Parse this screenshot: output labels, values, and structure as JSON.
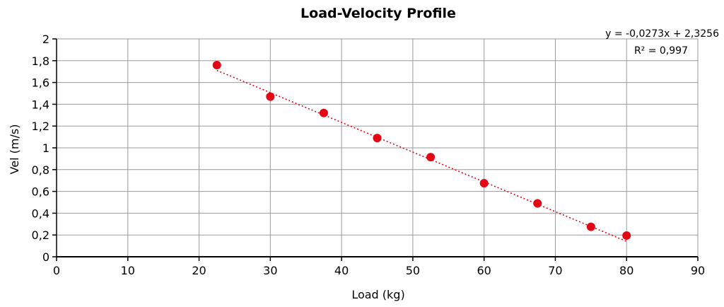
{
  "chart_data": {
    "type": "scatter",
    "title": "Load-Velocity Profile",
    "xlabel": "Load (kg)",
    "ylabel": "Vel (m/s)",
    "xlim": [
      0,
      90
    ],
    "ylim": [
      0,
      2
    ],
    "xticks": [
      0,
      10,
      20,
      30,
      40,
      50,
      60,
      70,
      80,
      90
    ],
    "xtick_labels": [
      "0",
      "10",
      "20",
      "30",
      "40",
      "50",
      "60",
      "70",
      "80",
      "90"
    ],
    "yticks": [
      0,
      0.2,
      0.4,
      0.6,
      0.8,
      1,
      1.2,
      1.4,
      1.6,
      1.8,
      2
    ],
    "ytick_labels": [
      "0",
      "0,2",
      "0,4",
      "0,6",
      "0,8",
      "1",
      "1,2",
      "1,4",
      "1,6",
      "1,8",
      "2"
    ],
    "grid": true,
    "series": [
      {
        "color": "#e30613",
        "points": [
          {
            "x": 22.5,
            "y": 1.76
          },
          {
            "x": 30,
            "y": 1.47
          },
          {
            "x": 37.5,
            "y": 1.32
          },
          {
            "x": 45,
            "y": 1.09
          },
          {
            "x": 52.5,
            "y": 0.915
          },
          {
            "x": 60,
            "y": 0.675
          },
          {
            "x": 67.5,
            "y": 0.49
          },
          {
            "x": 75,
            "y": 0.275
          },
          {
            "x": 80,
            "y": 0.195
          }
        ]
      }
    ],
    "trendline": {
      "type": "linear",
      "slope": -0.0273,
      "intercept": 2.3256,
      "x_range": [
        22.5,
        80
      ],
      "color": "#e30613",
      "style": "dotted",
      "equation": "y = -0,0273x + 2,3256",
      "r_squared": "R² = 0,997"
    }
  }
}
